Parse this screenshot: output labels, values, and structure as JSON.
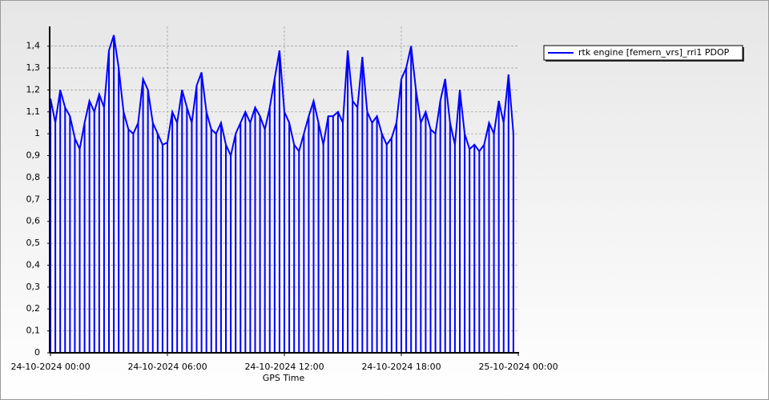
{
  "chart_data": {
    "type": "line",
    "drop_lines": true,
    "grid": true,
    "legend": "right",
    "x_label": "GPS Time",
    "xlim": [
      "24-10-2024 00:00",
      "25-10-2024 00:00"
    ],
    "xticks": [
      "24-10-2024 00:00",
      "24-10-2024 06:00",
      "24-10-2024 12:00",
      "24-10-2024 18:00",
      "25-10-2024 00:00"
    ],
    "ylim": [
      0,
      1.49
    ],
    "yticks": [
      0,
      {
        "value": 0.1,
        "label": "0,1"
      },
      {
        "value": 0.2,
        "label": "0,2"
      },
      {
        "value": 0.3,
        "label": "0,3"
      },
      {
        "value": 0.4,
        "label": "0,4"
      },
      {
        "value": 0.5,
        "label": "0,5"
      },
      {
        "value": 0.6,
        "label": "0,6"
      },
      {
        "value": 0.7,
        "label": "0,7"
      },
      {
        "value": 0.8,
        "label": "0,8"
      },
      {
        "value": 0.9,
        "label": "0,9"
      },
      1,
      {
        "value": 1.1,
        "label": "1,1"
      },
      {
        "value": 1.2,
        "label": "1,2"
      },
      {
        "value": 1.3,
        "label": "1,3"
      },
      {
        "value": 1.4,
        "label": "1,4"
      }
    ],
    "x": [
      "24-10-2024 00:00",
      "24-10-2024 00:15",
      "24-10-2024 00:30",
      "24-10-2024 00:45",
      "24-10-2024 01:00",
      "24-10-2024 01:15",
      "24-10-2024 01:30",
      "24-10-2024 01:45",
      "24-10-2024 02:00",
      "24-10-2024 02:15",
      "24-10-2024 02:30",
      "24-10-2024 02:45",
      "24-10-2024 03:00",
      "24-10-2024 03:15",
      "24-10-2024 03:30",
      "24-10-2024 03:45",
      "24-10-2024 04:00",
      "24-10-2024 04:15",
      "24-10-2024 04:30",
      "24-10-2024 04:45",
      "24-10-2024 05:00",
      "24-10-2024 05:15",
      "24-10-2024 05:30",
      "24-10-2024 05:45",
      "24-10-2024 06:00",
      "24-10-2024 06:15",
      "24-10-2024 06:30",
      "24-10-2024 06:45",
      "24-10-2024 07:00",
      "24-10-2024 07:15",
      "24-10-2024 07:30",
      "24-10-2024 07:45",
      "24-10-2024 08:00",
      "24-10-2024 08:15",
      "24-10-2024 08:30",
      "24-10-2024 08:45",
      "24-10-2024 09:00",
      "24-10-2024 09:15",
      "24-10-2024 09:30",
      "24-10-2024 09:45",
      "24-10-2024 10:00",
      "24-10-2024 10:15",
      "24-10-2024 10:30",
      "24-10-2024 10:45",
      "24-10-2024 11:00",
      "24-10-2024 11:15",
      "24-10-2024 11:30",
      "24-10-2024 11:45",
      "24-10-2024 12:00",
      "24-10-2024 12:15",
      "24-10-2024 12:30",
      "24-10-2024 12:45",
      "24-10-2024 13:00",
      "24-10-2024 13:15",
      "24-10-2024 13:30",
      "24-10-2024 13:45",
      "24-10-2024 14:00",
      "24-10-2024 14:15",
      "24-10-2024 14:30",
      "24-10-2024 14:45",
      "24-10-2024 15:00",
      "24-10-2024 15:15",
      "24-10-2024 15:30",
      "24-10-2024 15:45",
      "24-10-2024 16:00",
      "24-10-2024 16:15",
      "24-10-2024 16:30",
      "24-10-2024 16:45",
      "24-10-2024 17:00",
      "24-10-2024 17:15",
      "24-10-2024 17:30",
      "24-10-2024 17:45",
      "24-10-2024 18:00",
      "24-10-2024 18:15",
      "24-10-2024 18:30",
      "24-10-2024 18:45",
      "24-10-2024 19:00",
      "24-10-2024 19:15",
      "24-10-2024 19:30",
      "24-10-2024 19:45",
      "24-10-2024 20:00",
      "24-10-2024 20:15",
      "24-10-2024 20:30",
      "24-10-2024 20:45",
      "24-10-2024 21:00",
      "24-10-2024 21:15",
      "24-10-2024 21:30",
      "24-10-2024 21:45",
      "24-10-2024 22:00",
      "24-10-2024 22:15",
      "24-10-2024 22:30",
      "24-10-2024 22:45",
      "24-10-2024 23:00",
      "24-10-2024 23:15",
      "24-10-2024 23:30",
      "24-10-2024 23:45"
    ],
    "series": [
      {
        "name": "rtk engine [femern_vrs]_rri1 PDOP",
        "color": "#0000ff",
        "values": [
          1.16,
          1.05,
          1.2,
          1.12,
          1.08,
          0.98,
          0.93,
          1.05,
          1.15,
          1.1,
          1.18,
          1.12,
          1.38,
          1.45,
          1.3,
          1.1,
          1.02,
          1.0,
          1.05,
          1.25,
          1.2,
          1.05,
          1.0,
          0.95,
          0.96,
          1.1,
          1.05,
          1.2,
          1.12,
          1.05,
          1.22,
          1.28,
          1.1,
          1.02,
          1.0,
          1.05,
          0.95,
          0.9,
          1.0,
          1.05,
          1.1,
          1.05,
          1.12,
          1.08,
          1.02,
          1.12,
          1.25,
          1.38,
          1.1,
          1.05,
          0.95,
          0.92,
          1.0,
          1.08,
          1.15,
          1.05,
          0.95,
          1.08,
          1.08,
          1.1,
          1.05,
          1.38,
          1.15,
          1.12,
          1.35,
          1.1,
          1.05,
          1.08,
          1.0,
          0.95,
          0.98,
          1.05,
          1.25,
          1.3,
          1.4,
          1.2,
          1.05,
          1.1,
          1.02,
          1.0,
          1.15,
          1.25,
          1.05,
          0.95,
          1.2,
          1.0,
          0.93,
          0.95,
          0.92,
          0.95,
          1.05,
          1.0,
          1.15,
          1.05,
          1.27,
          1.0
        ]
      }
    ]
  }
}
